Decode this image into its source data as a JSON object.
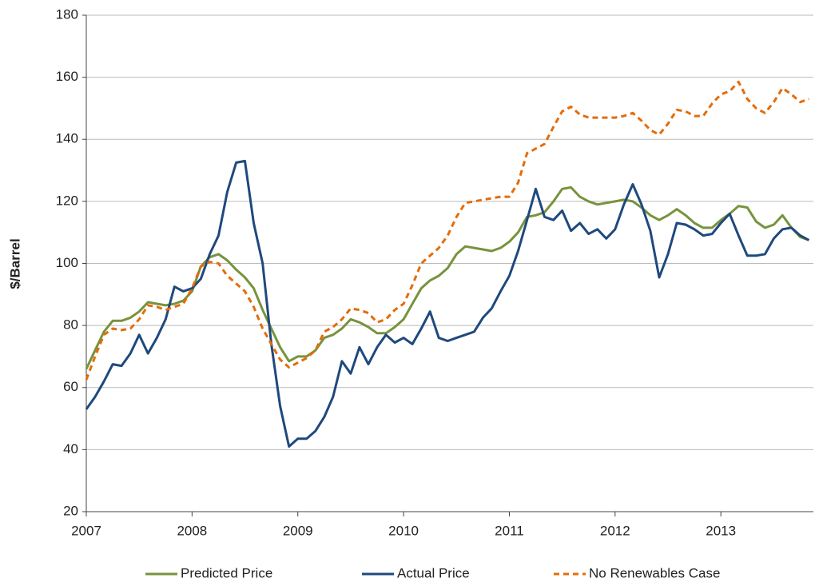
{
  "chart_data": {
    "type": "line",
    "y_label": "$/Barrel",
    "x": [
      2007,
      2007.083,
      2007.167,
      2007.25,
      2007.333,
      2007.417,
      2007.5,
      2007.583,
      2007.667,
      2007.75,
      2007.833,
      2007.917,
      2008,
      2008.083,
      2008.167,
      2008.25,
      2008.333,
      2008.417,
      2008.5,
      2008.583,
      2008.667,
      2008.75,
      2008.833,
      2008.917,
      2009,
      2009.083,
      2009.167,
      2009.25,
      2009.333,
      2009.417,
      2009.5,
      2009.583,
      2009.667,
      2009.75,
      2009.833,
      2009.917,
      2010,
      2010.083,
      2010.167,
      2010.25,
      2010.333,
      2010.417,
      2010.5,
      2010.583,
      2010.667,
      2010.75,
      2010.833,
      2010.917,
      2011,
      2011.083,
      2011.167,
      2011.25,
      2011.333,
      2011.417,
      2011.5,
      2011.583,
      2011.667,
      2011.75,
      2011.833,
      2011.917,
      2012,
      2012.083,
      2012.167,
      2012.25,
      2012.333,
      2012.417,
      2012.5,
      2012.583,
      2012.667,
      2012.75,
      2012.833,
      2012.917,
      2013,
      2013.083,
      2013.167,
      2013.25,
      2013.333,
      2013.417,
      2013.5,
      2013.583,
      2013.667,
      2013.75,
      2013.833
    ],
    "series": [
      {
        "name": "Predicted Price",
        "color": "#77933c",
        "dash": false,
        "values": [
          66,
          72,
          78,
          81.5,
          81.5,
          82.5,
          84.5,
          87.5,
          87,
          86.5,
          87,
          88,
          91,
          99,
          102,
          103,
          101,
          98,
          95.5,
          92,
          85,
          79,
          73,
          68.5,
          70,
          70,
          72,
          76,
          77,
          79,
          82,
          81,
          79.5,
          77.5,
          77.5,
          79.5,
          82,
          87,
          92,
          94.5,
          96,
          98.5,
          103,
          105.5,
          105,
          104.5,
          104,
          105,
          107,
          110,
          115,
          115.5,
          116.5,
          120,
          124,
          124.5,
          121.5,
          120,
          119,
          119.5,
          120,
          120.5,
          120,
          118,
          115.5,
          114,
          115.5,
          117.5,
          115.5,
          113,
          111.5,
          111.5,
          114,
          116,
          118.5,
          118,
          113.5,
          111.5,
          112.5,
          115.5,
          111.5,
          108.5,
          107.5
        ]
      },
      {
        "name": "Actual Price",
        "color": "#1f497d",
        "dash": false,
        "values": [
          53,
          57,
          62,
          67.5,
          67,
          71,
          77,
          71,
          76,
          82,
          92.5,
          91,
          92,
          95,
          103,
          109,
          123,
          132.5,
          133,
          113,
          100,
          74,
          54,
          41,
          43.5,
          43.5,
          46,
          50.5,
          57,
          68.5,
          64.5,
          73,
          67.5,
          73,
          77,
          74.5,
          76,
          74,
          79,
          84.5,
          76,
          75,
          76,
          77,
          78,
          82.5,
          85.5,
          91,
          96,
          104,
          114,
          124,
          115,
          114,
          117,
          110.5,
          113,
          109.5,
          111,
          108,
          111,
          119,
          125.5,
          119,
          110.5,
          95.5,
          103,
          113,
          112.5,
          111,
          109,
          109.5,
          113,
          116,
          109,
          102.5,
          102.5,
          103,
          108,
          111,
          111.5,
          109,
          107.5
        ]
      },
      {
        "name": "No Renewables Case",
        "color": "#e46c0a",
        "dash": true,
        "values": [
          62.5,
          70,
          77,
          79,
          78.5,
          79,
          82,
          86.5,
          86,
          85,
          86,
          87,
          92,
          99,
          100.5,
          100,
          96,
          93.5,
          91,
          86,
          79,
          74,
          69,
          66.5,
          68,
          69.5,
          72,
          78,
          79.5,
          82,
          85.5,
          85,
          84,
          81,
          82,
          85,
          87,
          93,
          100,
          102.5,
          105,
          109,
          115,
          119.5,
          120,
          120.5,
          121,
          121.5,
          121.5,
          126,
          135.5,
          137,
          138.5,
          144,
          149,
          150.5,
          148,
          147,
          147,
          147,
          147,
          147.5,
          148.5,
          146,
          143,
          141.5,
          145,
          149.5,
          149,
          147.5,
          147.5,
          151.5,
          154.5,
          155.5,
          158.5,
          153,
          150,
          148.5,
          152,
          156.5,
          154.5,
          152,
          153
        ]
      }
    ],
    "xlim": [
      2007,
      2013.875
    ],
    "xticks": [
      2007,
      2008,
      2009,
      2010,
      2011,
      2012,
      2013
    ],
    "ylim": [
      20,
      180
    ],
    "yticks": [
      20,
      40,
      60,
      80,
      100,
      120,
      140,
      160,
      180
    ],
    "grid": true,
    "legend": "bottom"
  }
}
